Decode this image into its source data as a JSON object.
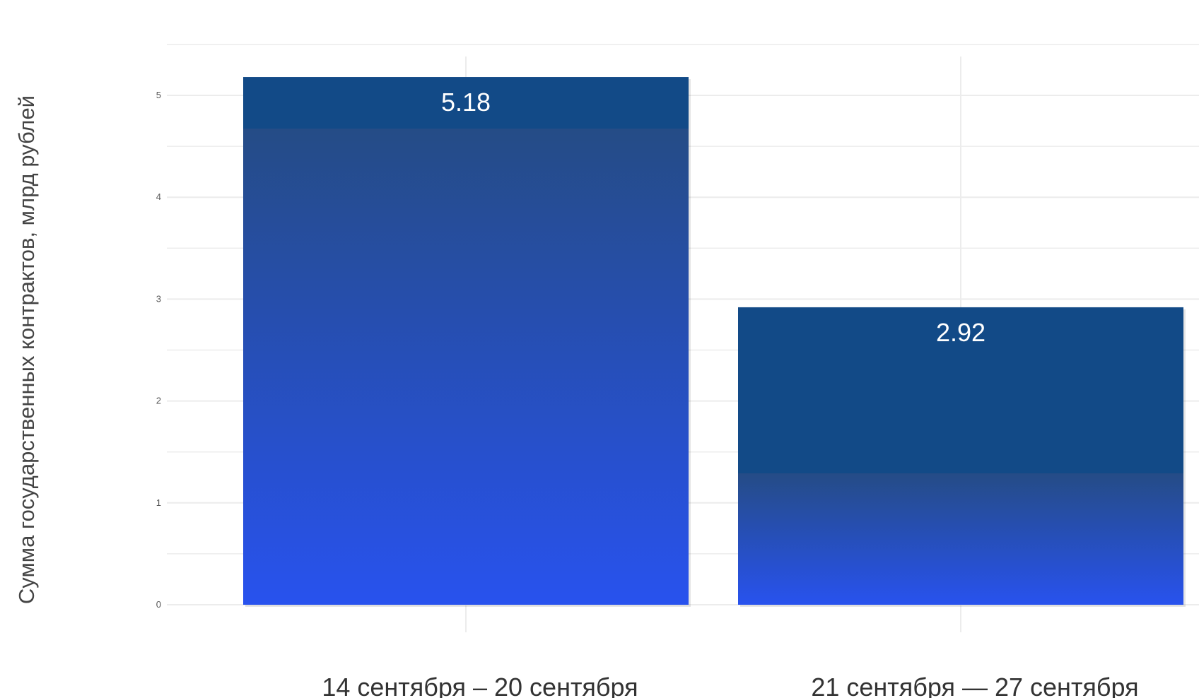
{
  "chart_data": {
    "type": "bar",
    "ylabel": "Сумма государственных контрактов, млрд рублей",
    "categories": [
      "14 сентября – 20 сентября",
      "21 сентября — 27 сентября"
    ],
    "values": [
      5.18,
      2.92
    ],
    "data_labels": [
      "5.18",
      "2.92"
    ],
    "y_ticks": [
      "0",
      "1",
      "2",
      "3",
      "4",
      "5"
    ],
    "ylim": [
      0,
      5.5
    ],
    "grid": true,
    "colors": {
      "bar_cap": "#124a87",
      "bar_top": "#254c86",
      "bar_bottom": "#2852ee",
      "grid": "#ececec"
    }
  }
}
